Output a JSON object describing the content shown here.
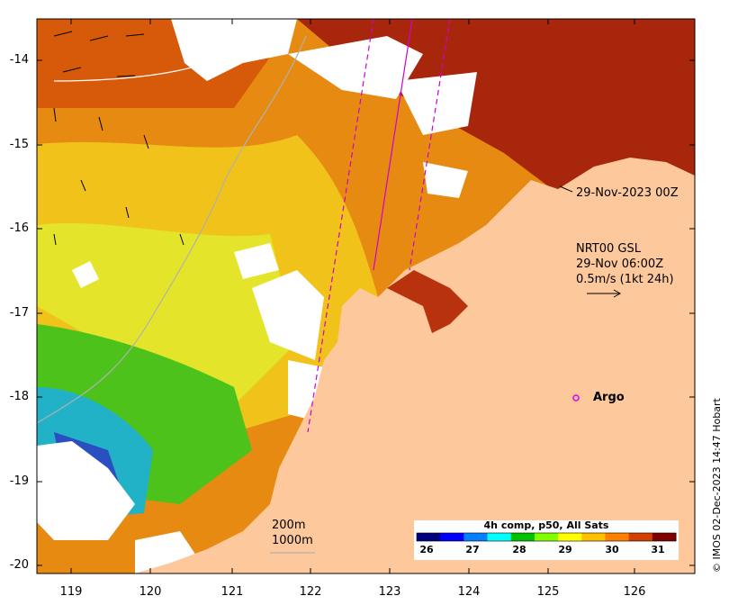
{
  "map": {
    "y_ticks": [
      "-14",
      "-15",
      "-16",
      "-17",
      "-18",
      "-19",
      "-20"
    ],
    "x_ticks": [
      "119",
      "120",
      "121",
      "122",
      "123",
      "124",
      "125",
      "126"
    ]
  },
  "annotations": {
    "swath_time": "29-Nov-2023 00Z",
    "current_source": "NRT00 GSL",
    "current_time": "29-Nov 06:00Z",
    "current_scale": "0.5m/s (1kt 24h)",
    "argo_label": "Argo",
    "depth_200": "200m",
    "depth_1000": "1000m"
  },
  "colorbar": {
    "title": "4h comp, p50, All Sats",
    "ticks": [
      "26",
      "27",
      "28",
      "29",
      "30",
      "31"
    ],
    "colors": [
      "#00007f",
      "#0000ff",
      "#0080ff",
      "#00ffff",
      "#00c000",
      "#80ff00",
      "#ffff00",
      "#ffc000",
      "#ff8000",
      "#d04000",
      "#7f0000"
    ]
  },
  "copyright": "© IMOS 02-Dec-2023 14:47 Hobart",
  "colors": {
    "land": "#fdc89b",
    "argo": "#e000e0",
    "swath": "#d000d0"
  }
}
